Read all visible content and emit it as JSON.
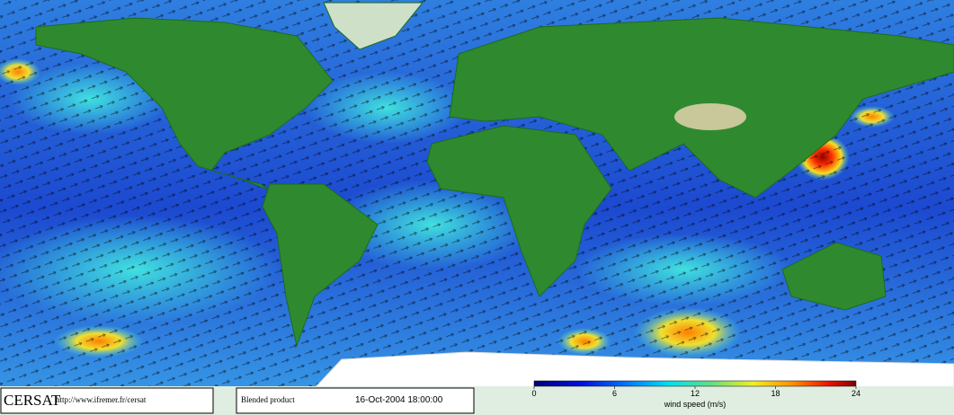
{
  "header": {
    "logo": "CERSAT",
    "url": "http://www.ifremer.fr/cersat"
  },
  "product": "Blended product",
  "timestamp": "16-Oct-2004 18:00:00",
  "colorbar": {
    "label": "wind speed (m/s)",
    "lim": [
      0,
      24
    ],
    "ticks": [
      0,
      6,
      12,
      18,
      24
    ]
  }
}
